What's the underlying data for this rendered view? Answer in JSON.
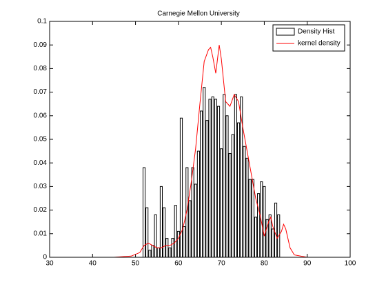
{
  "chart_data": {
    "type": "histogram",
    "title": "Carnegie Mellon University",
    "xlim": [
      30,
      100
    ],
    "xticks": [
      30,
      40,
      50,
      60,
      70,
      80,
      90,
      100
    ],
    "ylim": [
      0,
      0.1
    ],
    "yticks": [
      0,
      0.01,
      0.02,
      0.03,
      0.04,
      0.05,
      0.06,
      0.07,
      0.08,
      0.09,
      0.1
    ],
    "legend": "top-right",
    "series": [
      {
        "name": "Density Hist",
        "type": "histogram",
        "color": "#ffffff",
        "bins": [
          51.67,
          52.33,
          53,
          53.67,
          54.33,
          55,
          55.67,
          56.33,
          57,
          57.67,
          58.33,
          59,
          59.67,
          60.33,
          61,
          61.67,
          62.33,
          63,
          63.67,
          64.33,
          65,
          65.67,
          66.33,
          67,
          67.67,
          68.33,
          69,
          69.67,
          70.33,
          71,
          71.67,
          72.33,
          73,
          73.67,
          74.33,
          75,
          75.67,
          76.33,
          77,
          77.67,
          78.33,
          79,
          79.67,
          80.33,
          81,
          81.67,
          82.33,
          83,
          83.67
        ],
        "values": [
          0.038,
          0.021,
          0.003,
          0.005,
          0.018,
          0.004,
          0.03,
          0.021,
          0.008,
          0.004,
          0.008,
          0.022,
          0.011,
          0.059,
          0.013,
          0.038,
          0.024,
          0.038,
          0.031,
          0.045,
          0.062,
          0.072,
          0.058,
          0.067,
          0.068,
          0.067,
          0.064,
          0.046,
          0.069,
          0.06,
          0.044,
          0.052,
          0.069,
          0.057,
          0.068,
          0.047,
          0.042,
          0.033,
          0.033,
          0.017,
          0.027,
          0.032,
          0.03,
          0.016,
          0.018,
          0.012,
          0.023,
          0.018
        ]
      },
      {
        "name": "kernel density",
        "type": "line",
        "color": "#ff0000",
        "x": [
          38,
          45,
          49,
          51,
          52,
          53,
          54,
          55,
          56,
          57,
          58,
          59,
          60,
          61,
          62,
          63,
          64,
          65,
          66,
          67,
          67.5,
          68,
          68.7,
          69.5,
          70,
          71,
          72,
          73,
          74,
          75,
          76,
          77,
          78,
          79,
          80,
          81,
          81.5,
          82,
          83,
          84,
          84.5,
          85,
          86,
          87,
          90,
          96
        ],
        "values": [
          0,
          0,
          0.0005,
          0.002,
          0.005,
          0.006,
          0.005,
          0.004,
          0.004,
          0.005,
          0.005,
          0.006,
          0.008,
          0.012,
          0.02,
          0.032,
          0.046,
          0.065,
          0.083,
          0.088,
          0.089,
          0.085,
          0.078,
          0.09,
          0.084,
          0.066,
          0.064,
          0.069,
          0.066,
          0.055,
          0.045,
          0.035,
          0.025,
          0.018,
          0.009,
          0.015,
          0.017,
          0.013,
          0.008,
          0.011,
          0.014,
          0.012,
          0.004,
          0.001,
          0,
          0
        ]
      }
    ]
  }
}
